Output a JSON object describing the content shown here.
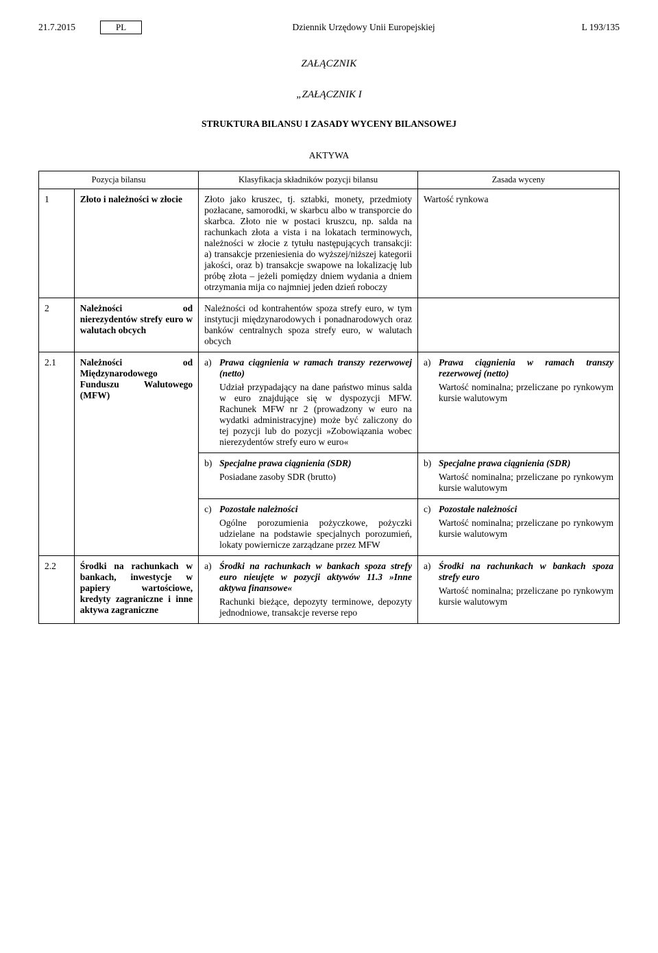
{
  "header": {
    "date": "21.7.2015",
    "lang": "PL",
    "title": "Dziennik Urzędowy Unii Europejskiej",
    "page": "L 193/135"
  },
  "annex": {
    "main": "ZAŁĄCZNIK",
    "sub": "„ZAŁĄCZNIK I",
    "section": "STRUKTURA BILANSU I ZASADY WYCENY BILANSOWEJ",
    "aktywa": "AKTYWA"
  },
  "th": {
    "pozycja": "Pozycja bilansu",
    "klas": "Klasyfikacja składników pozycji bilansu",
    "zasada": "Zasada wyceny"
  },
  "rows": {
    "r1": {
      "n": "1",
      "pozycja": "Złoto i należności w złocie",
      "klas": "Złoto jako kruszec, tj. sztabki, monety, przedmioty pozłacane, samorodki, w skarbcu albo w transporcie do skarbca. Złoto nie w postaci kruszcu, np. salda na rachunkach złota a vista i na lokatach terminowych, należności w złocie z tytułu następujących transakcji: a) transakcje przeniesienia do wyższej/niższej kategorii jakości, oraz b) transakcje swapowe na lokalizację lub próbę złota – jeżeli pomiędzy dniem wydania a dniem otrzymania mija co najmniej jeden dzień roboczy",
      "zasada": "Wartość rynkowa"
    },
    "r2": {
      "n": "2",
      "pozycja": "Należności od nierezydentów strefy euro w walutach obcych",
      "klas": "Należności od kontrahentów spoza strefy euro, w tym instytucji międzynarodowych i ponadnarodowych oraz banków centralnych spoza strefy euro, w walutach obcych"
    },
    "r21": {
      "n": "2.1",
      "pozycja": "Należności od Międzynarodowego Funduszu Walutowego (MFW)",
      "a": {
        "label": "a)",
        "klas_title": "Prawa ciągnienia w ramach transzy rezerwowej (netto)",
        "klas_desc": "Udział przypadający na dane państwo minus salda w euro znajdujące się w dyspozycji MFW. Rachunek MFW nr 2 (prowadzony w euro na wydatki administracyjne) może być zaliczony do tej pozycji lub do pozycji »Zobowiązania wobec nierezydentów strefy euro w euro«",
        "zas_title": "Prawa ciągnienia w ramach transzy rezerwowej (netto)",
        "zas_desc": "Wartość nominalna; przeliczane po rynkowym kursie walutowym"
      },
      "b": {
        "label": "b)",
        "klas_title": "Specjalne prawa ciągnienia (SDR)",
        "klas_desc": "Posiadane zasoby SDR (brutto)",
        "zas_title": "Specjalne prawa ciągnienia (SDR)",
        "zas_desc": "Wartość nominalna; przeliczane po rynkowym kursie walutowym"
      },
      "c": {
        "label": "c)",
        "klas_title": "Pozostałe należności",
        "klas_desc": "Ogólne porozumienia pożyczkowe, pożyczki udzielane na podstawie specjalnych porozumień, lokaty powiernicze zarządzane przez MFW",
        "zas_title": "Pozostałe należności",
        "zas_desc": "Wartość nominalna; przeliczane po rynkowym kursie walutowym"
      }
    },
    "r22": {
      "n": "2.2",
      "pozycja": "Środki na rachunkach w bankach, inwestycje w papiery wartościowe, kredyty zagraniczne i inne aktywa zagraniczne",
      "a": {
        "label": "a)",
        "klas_title": "Środki na rachunkach w bankach spoza strefy euro nieujęte w pozycji aktywów 11.3 »Inne aktywa finansowe«",
        "klas_desc": "Rachunki bieżące, depozyty terminowe, depozyty jednodniowe, transakcje reverse repo",
        "zas_title": "Środki na rachunkach w bankach spoza strefy euro",
        "zas_desc": "Wartość nominalna; przeliczane po rynkowym kursie walutowym"
      }
    }
  }
}
